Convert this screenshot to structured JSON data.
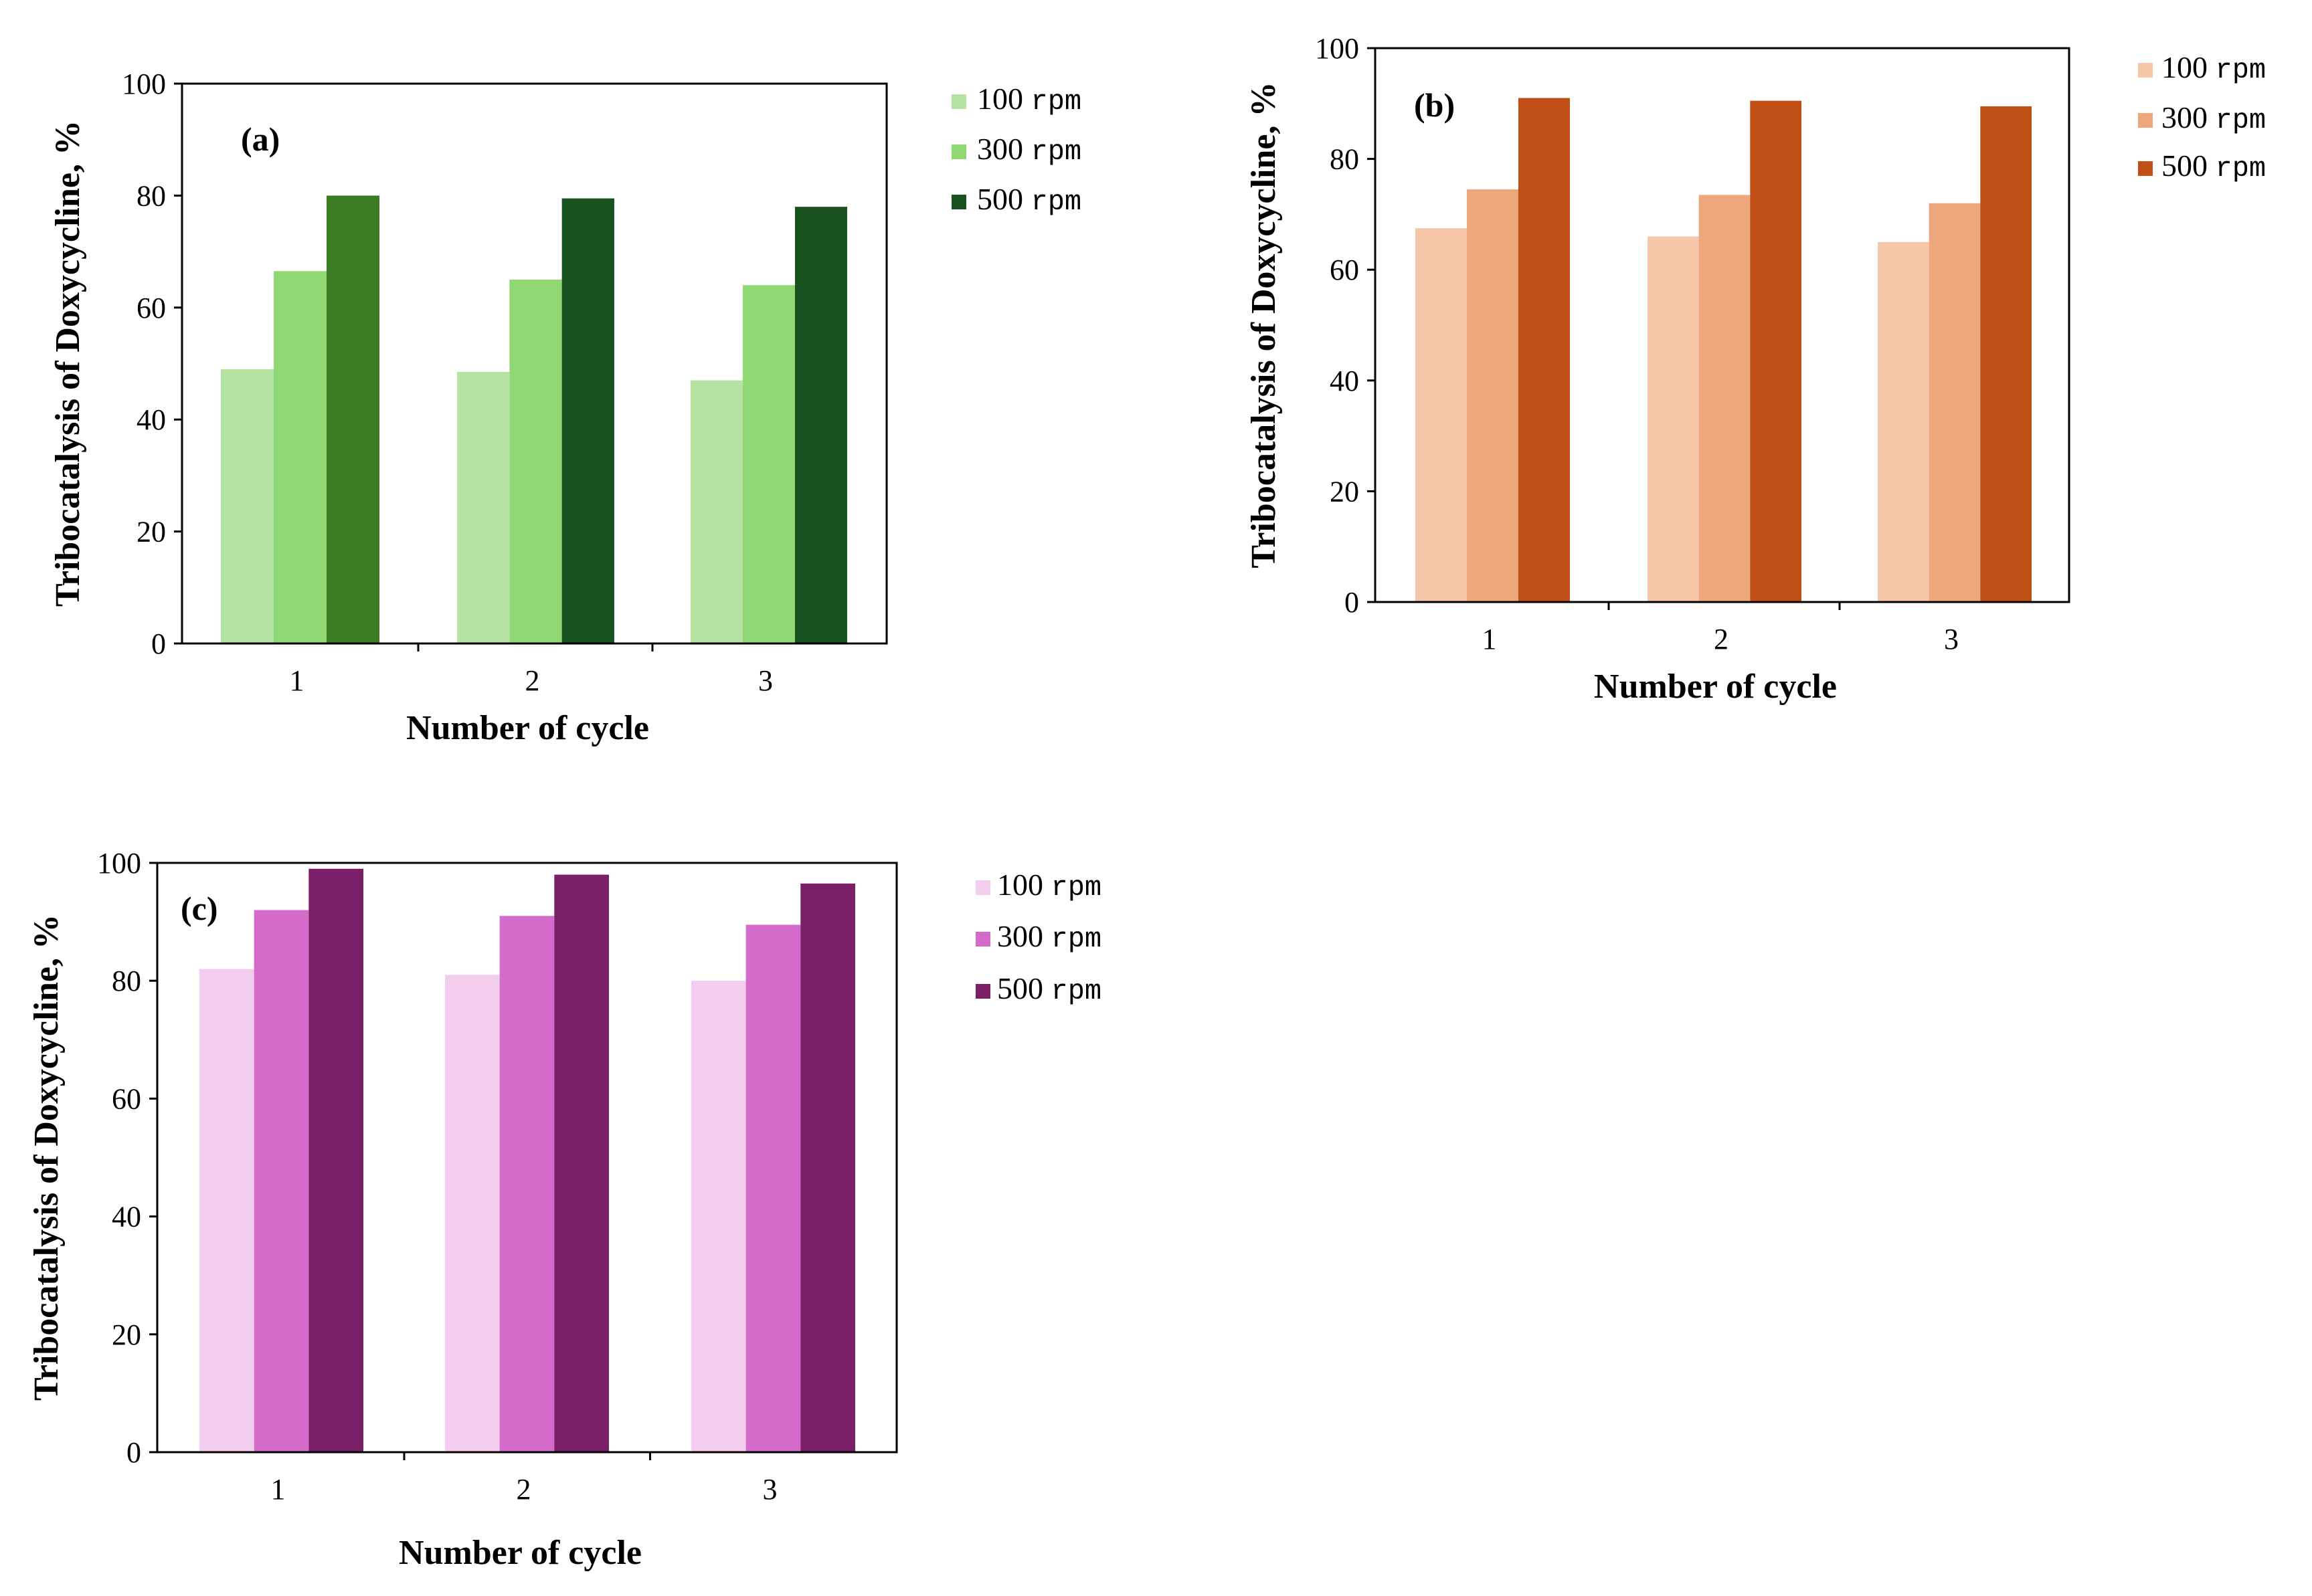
{
  "chart_data": [
    {
      "type": "bar",
      "panel_label": "(a)",
      "categories": [
        "1",
        "2",
        "3"
      ],
      "series": [
        {
          "name_value": "100",
          "name_unit": "rpm",
          "color": "#b5e3a3",
          "values": [
            49,
            48.5,
            47
          ]
        },
        {
          "name_value": "300",
          "name_unit": "rpm",
          "color": "#8fd873",
          "values": [
            66.5,
            65,
            64
          ]
        },
        {
          "name_value": "500",
          "name_unit": "rpm",
          "color_by_cycle": [
            "#3b7b22",
            "#17521f",
            "#17521f"
          ],
          "color": "#17521f",
          "values": [
            80,
            79.5,
            78
          ]
        }
      ],
      "xlabel": "Number of cycle",
      "ylabel": "Tribocatalysis  of  Doxycycline, %",
      "ylim": [
        0,
        100
      ],
      "yticks": [
        "0",
        "20",
        "40",
        "60",
        "80",
        "100"
      ],
      "legend_position": "right"
    },
    {
      "type": "bar",
      "panel_label": "(b)",
      "categories": [
        "1",
        "2",
        "3"
      ],
      "series": [
        {
          "name_value": "100",
          "name_unit": "rpm",
          "color": "#f6c6a8",
          "values": [
            67.5,
            66,
            65
          ]
        },
        {
          "name_value": "300",
          "name_unit": "rpm",
          "color": "#eea67d",
          "values": [
            74.5,
            73.5,
            72
          ]
        },
        {
          "name_value": "500",
          "name_unit": "rpm",
          "color": "#bf4f15",
          "values": [
            91,
            90.5,
            89.5
          ]
        }
      ],
      "xlabel": "Number of cycle",
      "ylabel": "Tribocatalysis  of  Doxycycline, %",
      "ylim": [
        0,
        100
      ],
      "yticks": [
        "0",
        "20",
        "40",
        "60",
        "80",
        "100"
      ],
      "legend_position": "right"
    },
    {
      "type": "bar",
      "panel_label": "(c)",
      "categories": [
        "1",
        "2",
        "3"
      ],
      "series": [
        {
          "name_value": "100",
          "name_unit": "rpm",
          "color": "#f2cdee",
          "values": [
            82,
            81,
            80
          ]
        },
        {
          "name_value": "300",
          "name_unit": "rpm",
          "color": "#d46ac9",
          "values": [
            92,
            91,
            89.5
          ]
        },
        {
          "name_value": "500",
          "name_unit": "rpm",
          "color": "#7a1f67",
          "values": [
            99,
            98,
            96.5
          ]
        }
      ],
      "xlabel": "Number of cycle",
      "ylabel": "Tribocatalysis  of  Doxycycline, %",
      "ylim": [
        0,
        100
      ],
      "yticks": [
        "0",
        "20",
        "40",
        "60",
        "80",
        "100"
      ],
      "legend_position": "right"
    }
  ]
}
